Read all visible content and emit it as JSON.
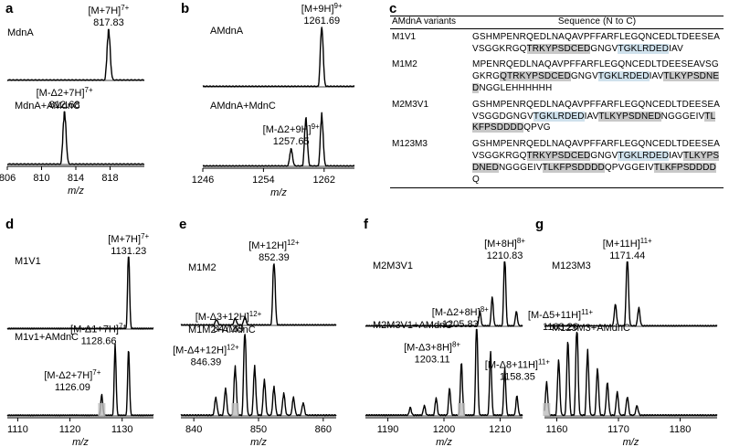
{
  "panel_labels": [
    "a",
    "b",
    "c",
    "d",
    "e",
    "f",
    "g"
  ],
  "table": {
    "header_variant": "AMdnA variants",
    "header_sequence": "Sequence (N to C)",
    "rows": [
      {
        "variant": "M1V1",
        "segments": [
          {
            "t": "GSHMPENRQEDLNAQAVPFFARFLEGQNCEDLTDEESEAVSGGKRGQ",
            "c": ""
          },
          {
            "t": "TRKYPSDCED",
            "c": "gray"
          },
          {
            "t": "GNGV",
            "c": ""
          },
          {
            "t": "TGKLRDED",
            "c": "blue"
          },
          {
            "t": "IAV",
            "c": ""
          }
        ]
      },
      {
        "variant": "M1M2",
        "segments": [
          {
            "t": "MPENRQEDLNAQAVPFFARFLEGQNCEDLTDEESEAVSGGKRG",
            "c": ""
          },
          {
            "t": "QTRKYPSDCED",
            "c": "gray"
          },
          {
            "t": "GNGV",
            "c": ""
          },
          {
            "t": "TGKLRDED",
            "c": "blue"
          },
          {
            "t": "IAV",
            "c": ""
          },
          {
            "t": "TLKYPSDNED",
            "c": "gray"
          },
          {
            "t": "NGGLEHHHHHH",
            "c": ""
          }
        ]
      },
      {
        "variant": "M2M3V1",
        "segments": [
          {
            "t": "GSHMPENRQEDLNAQAVPFFARFLEGQNCEDLTDEESEAVSGGDGNGV",
            "c": ""
          },
          {
            "t": "TGKLRDED",
            "c": "blue"
          },
          {
            "t": "IAV",
            "c": ""
          },
          {
            "t": "TLKYPSDNED",
            "c": "gray"
          },
          {
            "t": "NGGGEIV",
            "c": ""
          },
          {
            "t": "TLKFPSDDDD",
            "c": "gray"
          },
          {
            "t": "QPVG",
            "c": ""
          }
        ]
      },
      {
        "variant": "M123M3",
        "segments": [
          {
            "t": "GSHMPENRQEDLNAQAVPFFARFLEGQNCEDLTDEESEAVSGGKRGQ",
            "c": ""
          },
          {
            "t": "TRKYPSDCED",
            "c": "gray"
          },
          {
            "t": "GNGV",
            "c": ""
          },
          {
            "t": "TGKLRDED",
            "c": "blue"
          },
          {
            "t": "IAV",
            "c": ""
          },
          {
            "t": "TLKYPSDNED",
            "c": "gray"
          },
          {
            "t": "NGGGEIV",
            "c": ""
          },
          {
            "t": "TLKFPSDDDD",
            "c": "gray"
          },
          {
            "t": "QPVGGEIV",
            "c": ""
          },
          {
            "t": "TLKFPSDDDD",
            "c": "gray"
          },
          {
            "t": "Q",
            "c": ""
          }
        ]
      }
    ]
  },
  "colors": {
    "trace": "#000000",
    "highlight": "#bdbdbd",
    "table_gray": "#c8c8c8",
    "table_blue": "#cfe1ec"
  },
  "chart_data": [
    {
      "panel": "a",
      "type": "line",
      "xlabel": "m/z",
      "xlim": [
        806,
        822
      ],
      "xticks": [
        806,
        810,
        814,
        818
      ],
      "upper": {
        "name": "MdnA",
        "peaks": [
          {
            "mz": 817.83,
            "h": 1.0
          }
        ],
        "annots": [
          {
            "text": "[M+7H]7+",
            "value": "817.83",
            "mz": 817.83
          }
        ]
      },
      "lower": {
        "name": "MdnA+AMdnC",
        "peaks": [
          {
            "mz": 812.68,
            "h": 1.0
          }
        ],
        "annots": [
          {
            "text": "[M-Δ2+7H]7+",
            "value": "812.68",
            "mz": 812.68
          }
        ]
      }
    },
    {
      "panel": "b",
      "type": "line",
      "xlabel": "m/z",
      "xlim": [
        1246,
        1266
      ],
      "xticks": [
        1246,
        1254,
        1262
      ],
      "upper": {
        "name": "AMdnA",
        "peaks": [
          {
            "mz": 1261.69,
            "h": 1.0
          }
        ],
        "annots": [
          {
            "text": "[M+9H]9+",
            "value": "1261.69",
            "mz": 1261.69
          }
        ]
      },
      "lower": {
        "name": "AMdnA+MdnC",
        "peaks": [
          {
            "mz": 1257.65,
            "h": 0.3
          },
          {
            "mz": 1259.6,
            "h": 0.85
          },
          {
            "mz": 1261.69,
            "h": 0.9
          }
        ],
        "annots": [
          {
            "text": "[M-Δ2+9H]9+",
            "value": "1257.65",
            "mz": 1257.65
          }
        ]
      }
    },
    {
      "panel": "d",
      "type": "line",
      "xlabel": "m/z",
      "xlim": [
        1108,
        1136
      ],
      "xticks": [
        1110,
        1120,
        1130
      ],
      "upper": {
        "name": "M1V1",
        "peaks": [
          {
            "mz": 1131.23,
            "h": 1.0
          }
        ],
        "annots": [
          {
            "text": "[M+7H]7+",
            "value": "1131.23",
            "mz": 1131.23
          }
        ]
      },
      "lower": {
        "name": "M1v1+AMdnC",
        "peaks": [
          {
            "mz": 1126.09,
            "h": 0.25
          },
          {
            "mz": 1128.66,
            "h": 0.85
          },
          {
            "mz": 1131.23,
            "h": 0.8
          }
        ],
        "annots": [
          {
            "text": "[M-Δ1+7H]7+",
            "value": "1128.66",
            "mz": 1128.66
          },
          {
            "text": "[M-Δ2+7H]7+",
            "value": "1126.09",
            "mz": 1126.09
          }
        ]
      }
    },
    {
      "panel": "e",
      "type": "line",
      "xlabel": "m/z",
      "xlim": [
        838,
        862
      ],
      "xticks": [
        840,
        850,
        860
      ],
      "upper": {
        "name": "M1M2",
        "peaks": [
          {
            "mz": 852.39,
            "h": 1.0
          },
          {
            "mz": 847.89,
            "h": 0.12
          },
          {
            "mz": 846.39,
            "h": 0.1
          },
          {
            "mz": 843.5,
            "h": 0.08
          }
        ],
        "annots": [
          {
            "text": "[M+12H]12+",
            "value": "852.39",
            "mz": 852.39
          }
        ]
      },
      "lower": {
        "name": "M1M2+AMdnC",
        "peaks": [
          {
            "mz": 846.39,
            "h": 0.55
          },
          {
            "mz": 847.89,
            "h": 1.0
          },
          {
            "mz": 849.4,
            "h": 0.55
          },
          {
            "mz": 850.9,
            "h": 0.4
          },
          {
            "mz": 852.39,
            "h": 0.32
          },
          {
            "mz": 853.9,
            "h": 0.25
          },
          {
            "mz": 855.4,
            "h": 0.2
          },
          {
            "mz": 856.9,
            "h": 0.14
          },
          {
            "mz": 844.9,
            "h": 0.3
          },
          {
            "mz": 843.4,
            "h": 0.2
          }
        ],
        "annots": [
          {
            "text": "[M-Δ3+12H]12+",
            "value": "847.89",
            "mz": 847.89
          },
          {
            "text": "[M-Δ4+12H]12+",
            "value": "846.39",
            "mz": 846.39
          }
        ]
      }
    },
    {
      "panel": "f",
      "type": "line",
      "xlabel": "m/z",
      "xlim": [
        1186,
        1214
      ],
      "xticks": [
        1190,
        1200,
        1210
      ],
      "upper": {
        "name": "M2M3V1",
        "peaks": [
          {
            "mz": 1210.83,
            "h": 1.0
          },
          {
            "mz": 1208.6,
            "h": 0.4
          },
          {
            "mz": 1206.4,
            "h": 0.2
          },
          {
            "mz": 1212.9,
            "h": 0.2
          }
        ],
        "annots": [
          {
            "text": "[M+8H]8+",
            "value": "1210.83",
            "mz": 1210.83
          }
        ]
      },
      "lower": {
        "name": "M2M3V1+AMdnC",
        "peaks": [
          {
            "mz": 1205.83,
            "h": 1.0
          },
          {
            "mz": 1203.11,
            "h": 0.55
          },
          {
            "mz": 1208.3,
            "h": 0.65
          },
          {
            "mz": 1210.83,
            "h": 0.48
          },
          {
            "mz": 1201.0,
            "h": 0.28
          },
          {
            "mz": 1198.6,
            "h": 0.18
          },
          {
            "mz": 1213.0,
            "h": 0.2
          },
          {
            "mz": 1196.5,
            "h": 0.1
          },
          {
            "mz": 1194.0,
            "h": 0.08
          }
        ],
        "annots": [
          {
            "text": "[M-Δ2+8H]8+",
            "value": "1205.83",
            "mz": 1205.83
          },
          {
            "text": "[M-Δ3+8H]8+",
            "value": "1203.11",
            "mz": 1203.11
          }
        ]
      }
    },
    {
      "panel": "g",
      "type": "line",
      "xlabel": "m/z",
      "xlim": [
        1158,
        1186
      ],
      "xticks": [
        1160,
        1170,
        1180
      ],
      "upper": {
        "name": "M123M3",
        "peaks": [
          {
            "mz": 1171.44,
            "h": 1.0
          },
          {
            "mz": 1169.5,
            "h": 0.3
          },
          {
            "mz": 1173.3,
            "h": 0.25
          }
        ],
        "annots": [
          {
            "text": "[M+11H]11+",
            "value": "1171.44",
            "mz": 1171.44
          }
        ]
      },
      "lower": {
        "name": "M123M3+AMdnC",
        "peaks": [
          {
            "mz": 1163.26,
            "h": 1.0
          },
          {
            "mz": 1161.8,
            "h": 0.8
          },
          {
            "mz": 1165.0,
            "h": 0.7
          },
          {
            "mz": 1160.3,
            "h": 0.6
          },
          {
            "mz": 1166.6,
            "h": 0.5
          },
          {
            "mz": 1158.35,
            "h": 0.35
          },
          {
            "mz": 1168.2,
            "h": 0.35
          },
          {
            "mz": 1169.8,
            "h": 0.25
          },
          {
            "mz": 1171.44,
            "h": 0.2
          },
          {
            "mz": 1173.0,
            "h": 0.1
          }
        ],
        "annots": [
          {
            "text": "[M-Δ5+11H]11+",
            "value": "1163.26",
            "mz": 1163.26
          },
          {
            "text": "[M-Δ8+11H]11+",
            "value": "1158.35",
            "mz": 1158.35
          }
        ]
      }
    }
  ]
}
